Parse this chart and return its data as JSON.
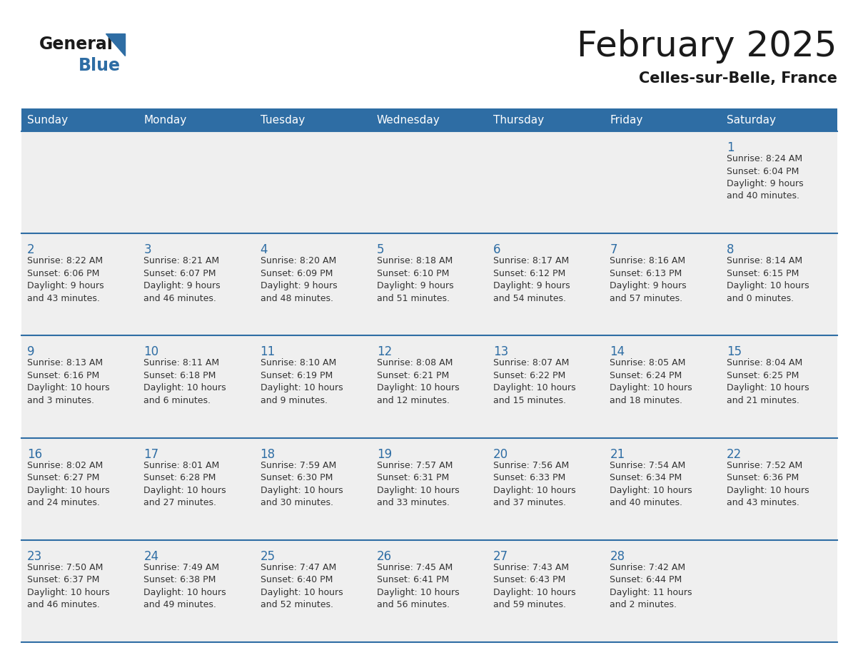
{
  "title": "February 2025",
  "subtitle": "Celles-sur-Belle, France",
  "header_bg": "#2E6DA4",
  "header_text": "#FFFFFF",
  "cell_bg": "#EFEFEF",
  "border_color": "#2E6DA4",
  "day_headers": [
    "Sunday",
    "Monday",
    "Tuesday",
    "Wednesday",
    "Thursday",
    "Friday",
    "Saturday"
  ],
  "title_color": "#1a1a1a",
  "subtitle_color": "#1a1a1a",
  "day_number_color": "#2E6DA4",
  "cell_text_color": "#333333",
  "logo_general_color": "#1a1a1a",
  "logo_blue_color": "#2E6DA4",
  "calendar_data": [
    [
      null,
      null,
      null,
      null,
      null,
      null,
      {
        "day": 1,
        "sunrise": "8:24 AM",
        "sunset": "6:04 PM",
        "daylight": "9 hours and 40 minutes."
      }
    ],
    [
      {
        "day": 2,
        "sunrise": "8:22 AM",
        "sunset": "6:06 PM",
        "daylight": "9 hours and 43 minutes."
      },
      {
        "day": 3,
        "sunrise": "8:21 AM",
        "sunset": "6:07 PM",
        "daylight": "9 hours and 46 minutes."
      },
      {
        "day": 4,
        "sunrise": "8:20 AM",
        "sunset": "6:09 PM",
        "daylight": "9 hours and 48 minutes."
      },
      {
        "day": 5,
        "sunrise": "8:18 AM",
        "sunset": "6:10 PM",
        "daylight": "9 hours and 51 minutes."
      },
      {
        "day": 6,
        "sunrise": "8:17 AM",
        "sunset": "6:12 PM",
        "daylight": "9 hours and 54 minutes."
      },
      {
        "day": 7,
        "sunrise": "8:16 AM",
        "sunset": "6:13 PM",
        "daylight": "9 hours and 57 minutes."
      },
      {
        "day": 8,
        "sunrise": "8:14 AM",
        "sunset": "6:15 PM",
        "daylight": "10 hours and 0 minutes."
      }
    ],
    [
      {
        "day": 9,
        "sunrise": "8:13 AM",
        "sunset": "6:16 PM",
        "daylight": "10 hours and 3 minutes."
      },
      {
        "day": 10,
        "sunrise": "8:11 AM",
        "sunset": "6:18 PM",
        "daylight": "10 hours and 6 minutes."
      },
      {
        "day": 11,
        "sunrise": "8:10 AM",
        "sunset": "6:19 PM",
        "daylight": "10 hours and 9 minutes."
      },
      {
        "day": 12,
        "sunrise": "8:08 AM",
        "sunset": "6:21 PM",
        "daylight": "10 hours and 12 minutes."
      },
      {
        "day": 13,
        "sunrise": "8:07 AM",
        "sunset": "6:22 PM",
        "daylight": "10 hours and 15 minutes."
      },
      {
        "day": 14,
        "sunrise": "8:05 AM",
        "sunset": "6:24 PM",
        "daylight": "10 hours and 18 minutes."
      },
      {
        "day": 15,
        "sunrise": "8:04 AM",
        "sunset": "6:25 PM",
        "daylight": "10 hours and 21 minutes."
      }
    ],
    [
      {
        "day": 16,
        "sunrise": "8:02 AM",
        "sunset": "6:27 PM",
        "daylight": "10 hours and 24 minutes."
      },
      {
        "day": 17,
        "sunrise": "8:01 AM",
        "sunset": "6:28 PM",
        "daylight": "10 hours and 27 minutes."
      },
      {
        "day": 18,
        "sunrise": "7:59 AM",
        "sunset": "6:30 PM",
        "daylight": "10 hours and 30 minutes."
      },
      {
        "day": 19,
        "sunrise": "7:57 AM",
        "sunset": "6:31 PM",
        "daylight": "10 hours and 33 minutes."
      },
      {
        "day": 20,
        "sunrise": "7:56 AM",
        "sunset": "6:33 PM",
        "daylight": "10 hours and 37 minutes."
      },
      {
        "day": 21,
        "sunrise": "7:54 AM",
        "sunset": "6:34 PM",
        "daylight": "10 hours and 40 minutes."
      },
      {
        "day": 22,
        "sunrise": "7:52 AM",
        "sunset": "6:36 PM",
        "daylight": "10 hours and 43 minutes."
      }
    ],
    [
      {
        "day": 23,
        "sunrise": "7:50 AM",
        "sunset": "6:37 PM",
        "daylight": "10 hours and 46 minutes."
      },
      {
        "day": 24,
        "sunrise": "7:49 AM",
        "sunset": "6:38 PM",
        "daylight": "10 hours and 49 minutes."
      },
      {
        "day": 25,
        "sunrise": "7:47 AM",
        "sunset": "6:40 PM",
        "daylight": "10 hours and 52 minutes."
      },
      {
        "day": 26,
        "sunrise": "7:45 AM",
        "sunset": "6:41 PM",
        "daylight": "10 hours and 56 minutes."
      },
      {
        "day": 27,
        "sunrise": "7:43 AM",
        "sunset": "6:43 PM",
        "daylight": "10 hours and 59 minutes."
      },
      {
        "day": 28,
        "sunrise": "7:42 AM",
        "sunset": "6:44 PM",
        "daylight": "11 hours and 2 minutes."
      },
      null
    ]
  ],
  "figsize": [
    11.88,
    9.18
  ],
  "dpi": 100
}
